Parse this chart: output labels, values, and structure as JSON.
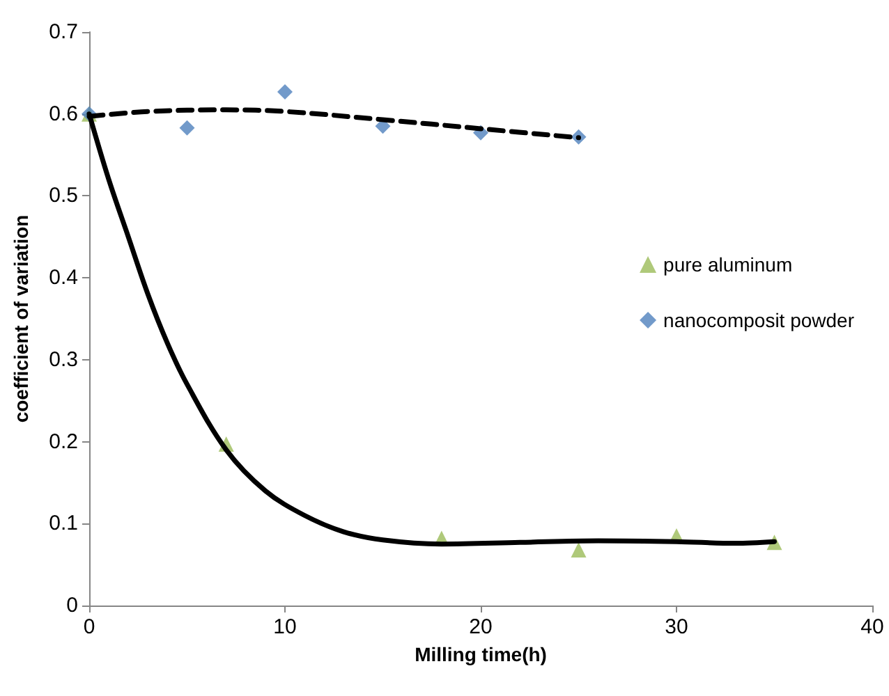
{
  "chart_data": {
    "type": "scatter",
    "xlabel": "Milling time(h)",
    "ylabel": "coefficient of variation",
    "xlim": [
      0,
      40
    ],
    "xticks": [
      0,
      10,
      20,
      30,
      40
    ],
    "ylim": [
      0,
      0.7
    ],
    "yticks": [
      0,
      0.1,
      0.2,
      0.3,
      0.4,
      0.5,
      0.6,
      0.7
    ],
    "grid": false,
    "legend": "right",
    "series": [
      {
        "name": "pure aluminum",
        "marker": "triangle",
        "color": "#9bbb59",
        "x": [
          0,
          7,
          18,
          25,
          30,
          35
        ],
        "values": [
          0.6,
          0.197,
          0.082,
          0.068,
          0.085,
          0.077
        ]
      },
      {
        "name": "nanocomposit powder",
        "marker": "diamond",
        "color": "#4f81bd",
        "x": [
          0,
          5,
          10,
          15,
          20,
          25
        ],
        "values": [
          0.6,
          0.583,
          0.627,
          0.585,
          0.577,
          0.572
        ]
      },
      {
        "type": "line",
        "color": "#000000",
        "line_style": "dashed",
        "marker": "none",
        "x": [
          0,
          3,
          7,
          10,
          15,
          20,
          25
        ],
        "values": [
          0.597,
          0.603,
          0.605,
          0.603,
          0.593,
          0.582,
          0.571
        ]
      },
      {
        "type": "line",
        "color": "#000000",
        "line_style": "solid",
        "marker": "none",
        "x": [
          0,
          1,
          2,
          3,
          4,
          5,
          7,
          9,
          11,
          13,
          15,
          18,
          22,
          26,
          30,
          33,
          35
        ],
        "values": [
          0.6,
          0.52,
          0.45,
          0.38,
          0.32,
          0.27,
          0.19,
          0.14,
          0.11,
          0.09,
          0.08,
          0.075,
          0.077,
          0.079,
          0.078,
          0.076,
          0.078
        ]
      }
    ]
  }
}
